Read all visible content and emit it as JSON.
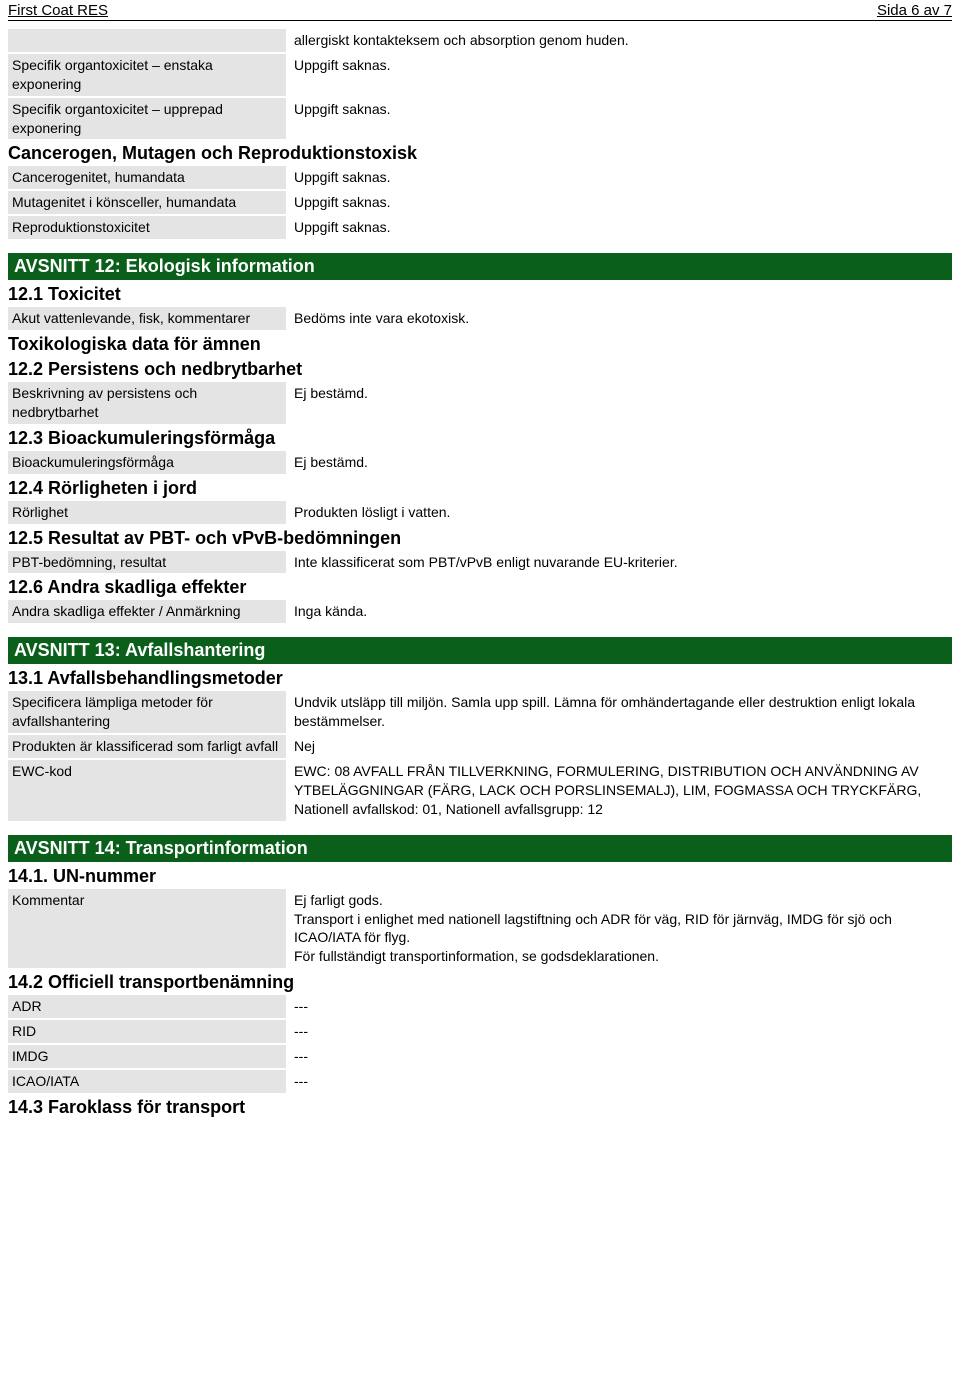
{
  "header": {
    "title": "First Coat RES",
    "page": "Sida 6 av 7"
  },
  "section11_tail": {
    "row0_value": "allergiskt kontakteksem och absorption genom huden.",
    "rows": [
      {
        "label": "Specifik organtoxicitet – enstaka exponering",
        "value": "Uppgift saknas."
      },
      {
        "label": "Specifik organtoxicitet – upprepad exponering",
        "value": "Uppgift saknas."
      }
    ],
    "subheading": "Cancerogen, Mutagen och Reproduktionstoxisk",
    "rows2": [
      {
        "label": "Cancerogenitet, humandata",
        "value": "Uppgift saknas."
      },
      {
        "label": "Mutagenitet i könsceller, humandata",
        "value": "Uppgift saknas."
      },
      {
        "label": "Reproduktionstoxicitet",
        "value": "Uppgift saknas."
      }
    ]
  },
  "section12": {
    "title": "AVSNITT 12: Ekologisk information",
    "s12_1": {
      "heading": "12.1 Toxicitet",
      "row": {
        "label": "Akut vattenlevande, fisk, kommentarer",
        "value": "Bedöms inte vara ekotoxisk."
      },
      "sub_tox": "Toxikologiska data för ämnen"
    },
    "s12_2": {
      "heading": "12.2 Persistens och nedbrytbarhet",
      "row": {
        "label": "Beskrivning av persistens och nedbrytbarhet",
        "value": "Ej bestämd."
      }
    },
    "s12_3": {
      "heading": "12.3 Bioackumuleringsförmåga",
      "row": {
        "label": "Bioackumuleringsförmåga",
        "value": "Ej bestämd."
      }
    },
    "s12_4": {
      "heading": "12.4 Rörligheten i jord",
      "row": {
        "label": "Rörlighet",
        "value": "Produkten lösligt i vatten."
      }
    },
    "s12_5": {
      "heading": "12.5 Resultat av PBT- och vPvB-bedömningen",
      "row": {
        "label": "PBT-bedömning, resultat",
        "value": "Inte klassificerat som PBT/vPvB enligt nuvarande EU-kriterier."
      }
    },
    "s12_6": {
      "heading": "12.6 Andra skadliga effekter",
      "row": {
        "label": "Andra skadliga effekter / Anmärkning",
        "value": "Inga kända."
      }
    }
  },
  "section13": {
    "title": "AVSNITT 13: Avfallshantering",
    "s13_1": {
      "heading": "13.1 Avfallsbehandlingsmetoder",
      "rows": [
        {
          "label": "Specificera lämpliga metoder för avfallshantering",
          "value": "Undvik utsläpp till miljön. Samla upp spill. Lämna för omhändertagande eller destruktion enligt lokala bestämmelser."
        },
        {
          "label": "Produkten är klassificerad som farligt avfall",
          "value": "Nej"
        },
        {
          "label": "EWC-kod",
          "value": "EWC: 08 AVFALL FRÅN TILLVERKNING, FORMULERING, DISTRIBUTION OCH ANVÄNDNING AV YTBELÄGGNINGAR (FÄRG, LACK OCH PORSLINSEMALJ), LIM, FOGMASSA OCH TRYCKFÄRG,   Nationell avfallskod: 01,   Nationell avfallsgrupp: 12"
        }
      ]
    }
  },
  "section14": {
    "title": "AVSNITT 14: Transportinformation",
    "s14_1": {
      "heading": "14.1. UN-nummer",
      "row": {
        "label": "Kommentar",
        "value": "Ej farligt gods.\nTransport i enlighet med nationell lagstiftning och ADR för väg, RID för järnväg, IMDG för sjö och ICAO/IATA för flyg.\nFör fullständigt transportinformation, se godsdeklarationen."
      }
    },
    "s14_2": {
      "heading": "14.2 Officiell transportbenämning",
      "rows": [
        {
          "label": "ADR",
          "value": "---"
        },
        {
          "label": "RID",
          "value": "---"
        },
        {
          "label": "IMDG",
          "value": "---"
        },
        {
          "label": "ICAO/IATA",
          "value": "---"
        }
      ]
    },
    "s14_3": {
      "heading": "14.3 Faroklass för transport"
    }
  },
  "colors": {
    "section_bar_bg": "#0a5f1a",
    "section_bar_fg": "#ffffff",
    "label_bg": "#e4e4e4",
    "text": "#000000",
    "page_bg": "#ffffff"
  }
}
